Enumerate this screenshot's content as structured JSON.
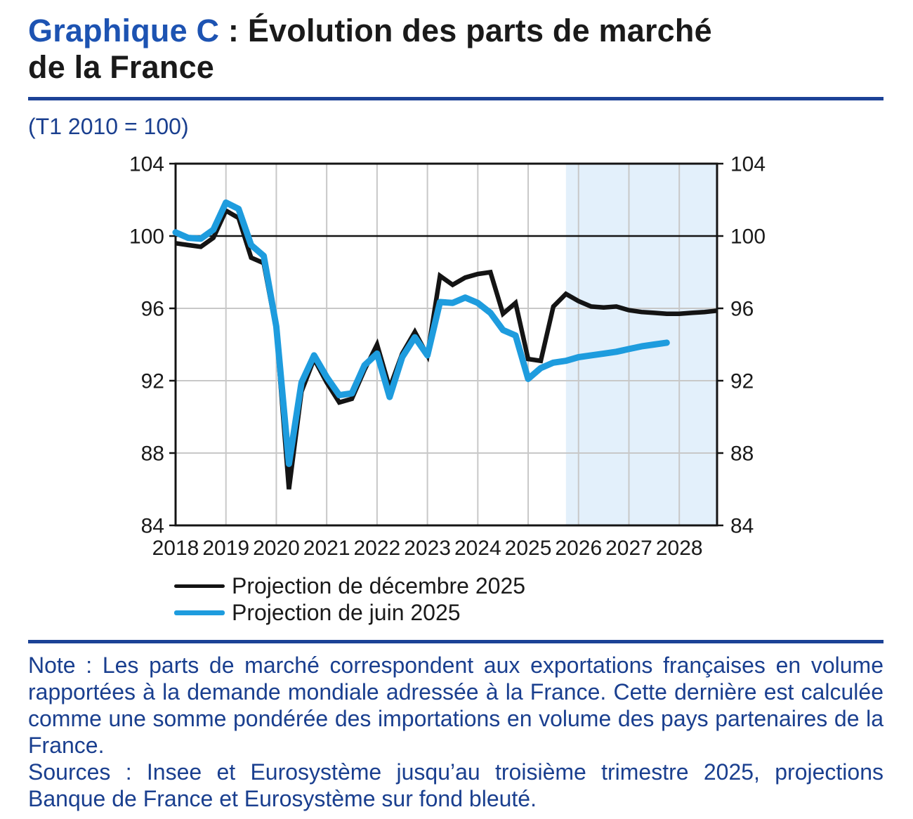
{
  "title": {
    "prefix": "Graphique C",
    "rest": " : Évolution des parts de marché",
    "line2": "de la France"
  },
  "subtitle": "(T1 2010 = 100)",
  "legend": {
    "items": [
      {
        "label": "Projection de décembre 2025",
        "color": "#141414"
      },
      {
        "label": "Projection de juin 2025",
        "color": "#1e9cde"
      }
    ]
  },
  "notes": {
    "note": "Note : Les parts de marché correspondent aux exportations françaises en volume rapportées à la demande mondiale adressée à la France. Cette dernière est calculée comme une somme pondérée des importations en volume des pays partenaires de la France.",
    "sources": "Sources : Insee et Eurosystème jusqu’au troisième trimestre 2025, projections Banque de France et Eurosystème sur fond bleuté."
  },
  "colors": {
    "title_blue": "#1d53b2",
    "navy_text": "#1a3f8f",
    "rule_blue": "#1c4296",
    "grid_gray": "#c8c8c8",
    "frame_black": "#141414",
    "shade_blue": "#e3f0fb",
    "series_black": "#141414",
    "series_blue": "#1e9cde"
  },
  "chart_data": {
    "type": "line",
    "title": "Évolution des parts de marché de la France",
    "unit_note": "(T1 2010 = 100)",
    "xlim": [
      2018,
      2028.75
    ],
    "ylim": [
      84,
      104
    ],
    "y_ticks": [
      84,
      88,
      92,
      96,
      100,
      104
    ],
    "x_tick_labels": [
      "2018",
      "2019",
      "2020",
      "2021",
      "2022",
      "2023",
      "2024",
      "2025",
      "2026",
      "2027",
      "2028"
    ],
    "reference_line": 100,
    "grid": true,
    "shaded_region": {
      "from": 2025.75,
      "to": 2028.75,
      "color": "#e3f0fb"
    },
    "legend_position": "bottom-left",
    "series": [
      {
        "name": "Projection de décembre 2025",
        "color": "#141414",
        "stroke_width": 6.5,
        "linecap": "butt",
        "linejoin": "miter",
        "x_start": 2018,
        "x_step": 0.25,
        "values": [
          99.6,
          99.5,
          99.4,
          99.9,
          101.4,
          101.0,
          98.8,
          98.5,
          94.8,
          86.0,
          91.4,
          93.2,
          91.9,
          90.8,
          91.0,
          92.6,
          94.0,
          91.6,
          93.5,
          94.7,
          93.4,
          97.8,
          97.3,
          97.7,
          97.9,
          98.0,
          95.7,
          96.3,
          93.2,
          93.1,
          96.1,
          96.8,
          96.4,
          96.1,
          96.05,
          96.1,
          95.9,
          95.8,
          95.75,
          95.7,
          95.7,
          95.75,
          95.8,
          95.87
        ]
      },
      {
        "name": "Projection de juin 2025",
        "color": "#1e9cde",
        "stroke_width": 9,
        "linecap": "round",
        "linejoin": "round",
        "x_start": 2018,
        "x_step": 0.25,
        "values": [
          100.2,
          99.9,
          99.85,
          100.35,
          101.85,
          101.5,
          99.5,
          98.9,
          95.0,
          87.4,
          91.9,
          93.4,
          92.2,
          91.2,
          91.3,
          92.85,
          93.5,
          91.1,
          93.3,
          94.4,
          93.4,
          96.35,
          96.3,
          96.6,
          96.3,
          95.75,
          94.8,
          94.5,
          92.1,
          92.7,
          93.0,
          93.1,
          93.3,
          93.4,
          93.5,
          93.6,
          93.75,
          93.9,
          94.0,
          94.1
        ]
      }
    ]
  }
}
